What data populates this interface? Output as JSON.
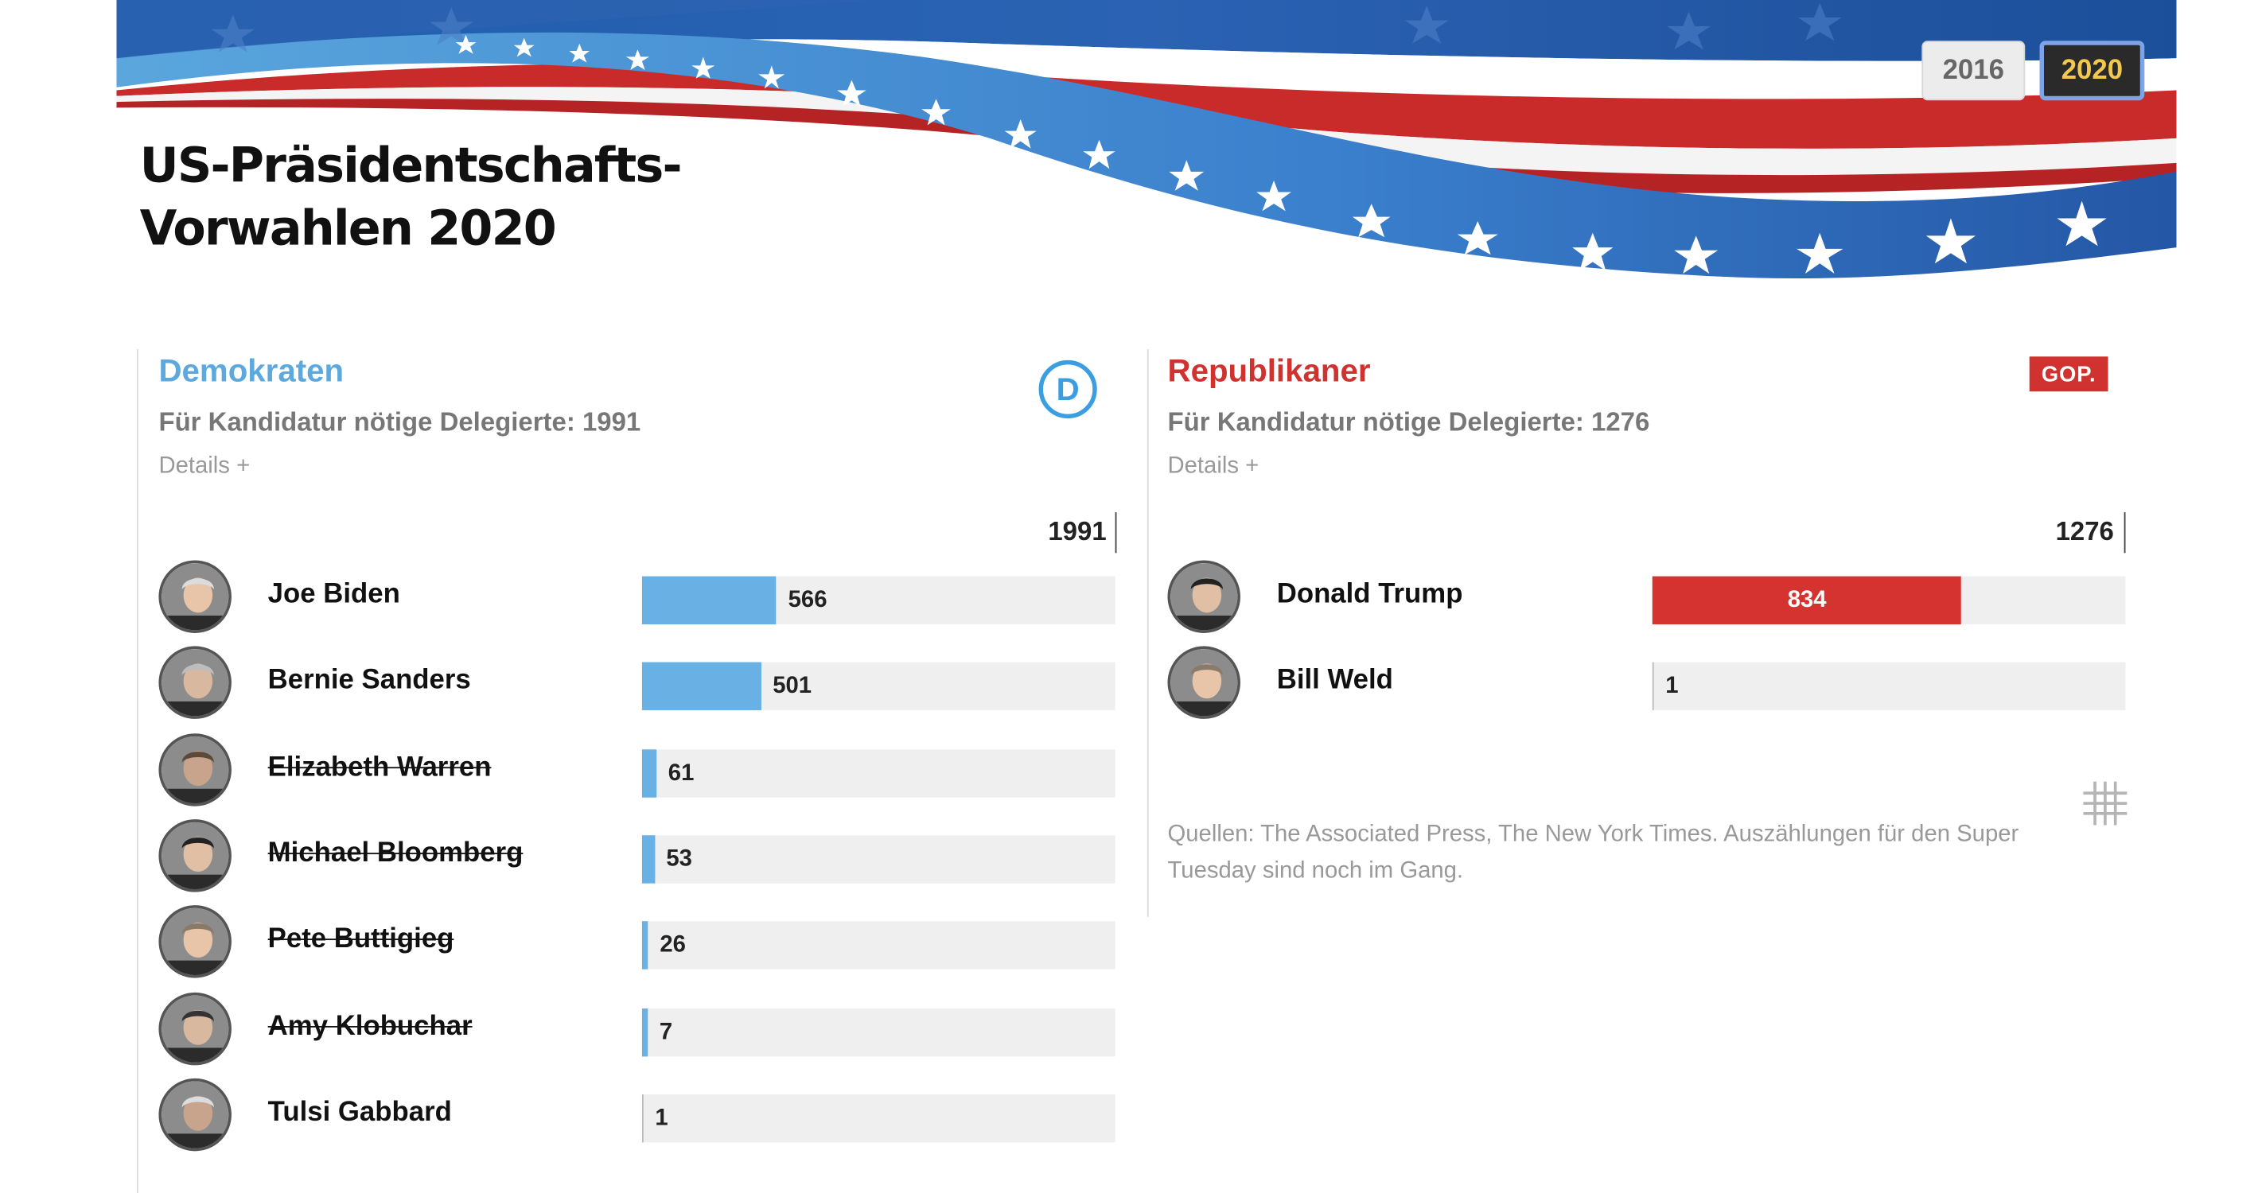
{
  "header": {
    "title_line1": "US-Präsidentschafts-",
    "title_line2": "Vorwahlen 2020",
    "years": [
      "2016",
      "2020"
    ],
    "selected_year": "2020"
  },
  "colors": {
    "democrat": "#5da9dd",
    "democrat_bar": "#69b0e4",
    "republican": "#d0332f",
    "track": "#efefef"
  },
  "democrats": {
    "title": "Demokraten",
    "needed_label": "Für Kandidatur nötige Delegierte: 1991",
    "details": "Details +",
    "threshold": 1991,
    "logo_letter": "D",
    "candidates": [
      {
        "name": "Joe Biden",
        "delegates": 566,
        "withdrawn": false
      },
      {
        "name": "Bernie Sanders",
        "delegates": 501,
        "withdrawn": false
      },
      {
        "name": "Elizabeth Warren",
        "delegates": 61,
        "withdrawn": true
      },
      {
        "name": "Michael Bloomberg",
        "delegates": 53,
        "withdrawn": true
      },
      {
        "name": "Pete Buttigieg",
        "delegates": 26,
        "withdrawn": true
      },
      {
        "name": "Amy Klobuchar",
        "delegates": 7,
        "withdrawn": true
      },
      {
        "name": "Tulsi Gabbard",
        "delegates": 1,
        "withdrawn": false
      }
    ]
  },
  "republicans": {
    "title": "Republikaner",
    "needed_label": "Für Kandidatur nötige Delegierte: 1276",
    "details": "Details +",
    "threshold": 1276,
    "logo_text": "GOP.",
    "candidates": [
      {
        "name": "Donald Trump",
        "delegates": 834,
        "withdrawn": false
      },
      {
        "name": "Bill Weld",
        "delegates": 1,
        "withdrawn": false
      }
    ]
  },
  "sources": "Quellen: The Associated Press, The New York Times. Auszählungen für den Super Tuesday sind noch im Gang.",
  "icons": {
    "dem_logo": "democratic-party-logo-icon",
    "gop_logo": "gop-logo-icon",
    "grid": "grid-icon"
  }
}
